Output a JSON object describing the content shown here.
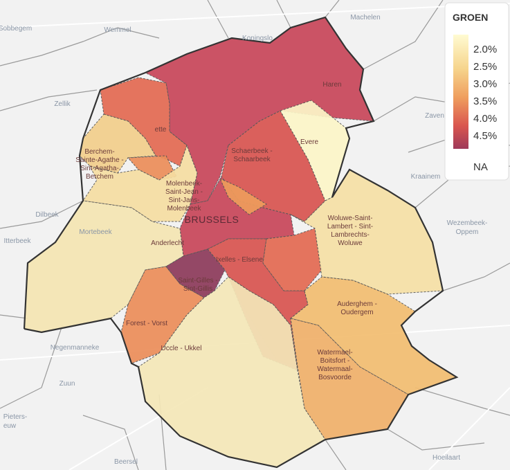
{
  "legend": {
    "title": "GROEN",
    "labels": [
      "2.0%",
      "2.5%",
      "3.0%",
      "3.5%",
      "4.0%",
      "4.5%"
    ],
    "na": "NA"
  },
  "places": [
    "Sobbegem",
    "Wemmel",
    "Koningslo",
    "Machelen",
    "Zellik",
    "Zaven",
    "Kraainem",
    "Wezembeek-",
    "Oppem",
    "Dilbeek",
    "Itterbeek",
    "Negenmanneke",
    "Zuun",
    "Pieters-",
    "euw",
    "Beersel",
    "Hoeilaart",
    "Mortebeek"
  ],
  "communes": [
    [
      "Haren"
    ],
    [
      "Schaerbeek -",
      "Schaarbeek"
    ],
    [
      "Evere"
    ],
    [
      "Woluwe-Saint-",
      "Lambert - Sint-",
      "Lambrechts-",
      "Woluwe"
    ],
    [
      "Auderghem -",
      "Oudergem"
    ],
    [
      "Watermael-",
      "Boitsfort -",
      "Watermaal-",
      "Bosvoorde"
    ],
    [
      "Uccle - Ukkel"
    ],
    [
      "Forest - Vorst"
    ],
    [
      "Saint-Gilles -",
      "Sint-Gillis"
    ],
    [
      "Ixelles - Elsene"
    ],
    [
      "Anderlecht"
    ],
    [
      "Molenbeek-",
      "Saint-Jean -",
      "Sint-Jans-",
      "Molenbeek"
    ],
    [
      "Berchem-",
      "Sainte-Agathe -",
      "Sint-Agatha-",
      "Berchem"
    ],
    [
      "ette"
    ],
    [
      "BRUSSELS"
    ]
  ]
}
